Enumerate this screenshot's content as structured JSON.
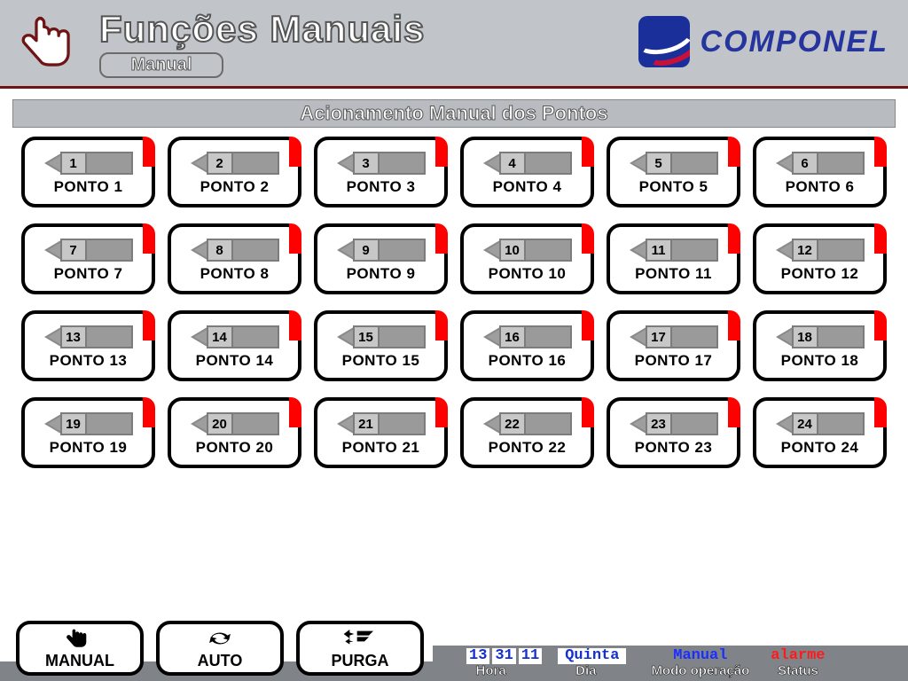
{
  "header": {
    "title": "Funções Manuais",
    "tab": "Manual",
    "brand": "COMPONEL",
    "brand_color": "#26349e",
    "brand_square_bg": "#1a2f9a"
  },
  "section_title": "Acionamento Manual dos Pontos",
  "pontos": [
    {
      "n": "1",
      "label": "PONTO 1"
    },
    {
      "n": "2",
      "label": "PONTO 2"
    },
    {
      "n": "3",
      "label": "PONTO 3"
    },
    {
      "n": "4",
      "label": "PONTO 4"
    },
    {
      "n": "5",
      "label": "PONTO 5"
    },
    {
      "n": "6",
      "label": "PONTO 6"
    },
    {
      "n": "7",
      "label": "PONTO 7"
    },
    {
      "n": "8",
      "label": "PONTO 8"
    },
    {
      "n": "9",
      "label": "PONTO 9"
    },
    {
      "n": "10",
      "label": "PONTO 10"
    },
    {
      "n": "11",
      "label": "PONTO 11"
    },
    {
      "n": "12",
      "label": "PONTO 12"
    },
    {
      "n": "13",
      "label": "PONTO 13"
    },
    {
      "n": "14",
      "label": "PONTO 14"
    },
    {
      "n": "15",
      "label": "PONTO 15"
    },
    {
      "n": "16",
      "label": "PONTO 16"
    },
    {
      "n": "17",
      "label": "PONTO 17"
    },
    {
      "n": "18",
      "label": "PONTO 18"
    },
    {
      "n": "19",
      "label": "PONTO 19"
    },
    {
      "n": "20",
      "label": "PONTO 20"
    },
    {
      "n": "21",
      "label": "PONTO 21"
    },
    {
      "n": "22",
      "label": "PONTO 22"
    },
    {
      "n": "23",
      "label": "PONTO 23"
    },
    {
      "n": "24",
      "label": "PONTO 24"
    }
  ],
  "ponto_style": {
    "border_color": "#000000",
    "border_radius": 16,
    "indicator_color": "#ff0000",
    "actuator_fill": "#9a9a9a",
    "actuator_slot_fill": "#c7c7c7"
  },
  "mode_buttons": {
    "manual": "MANUAL",
    "auto": "AUTO",
    "purga": "PURGA"
  },
  "status": {
    "time": {
      "h": "13",
      "m": "31",
      "s": "11",
      "label": "Hora"
    },
    "day": {
      "value": "Quinta",
      "label": "Dia"
    },
    "mode": {
      "value": "Manual",
      "label": "Modo operação",
      "color": "#1a2fff"
    },
    "alarm": {
      "value": "alarme",
      "label": "Status",
      "color": "#ff1a1a"
    }
  },
  "colors": {
    "header_bg": "#c1c5ca",
    "header_border": "#6e1414",
    "status_bg": "#808488"
  }
}
